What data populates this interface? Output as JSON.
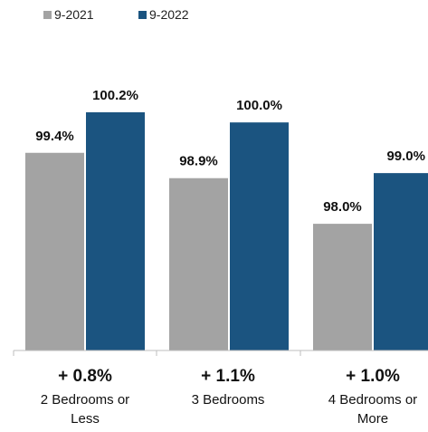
{
  "chart_data": {
    "type": "bar",
    "categories": [
      {
        "lines": [
          "2 Bedrooms or",
          "Less"
        ],
        "change": "+ 0.8%"
      },
      {
        "lines": [
          "3 Bedrooms"
        ],
        "change": "+ 1.1%"
      },
      {
        "lines": [
          "4 Bedrooms or",
          "More"
        ],
        "change": "+ 1.0%"
      }
    ],
    "series": [
      {
        "name": "9-2021",
        "color": "#A3A3A3",
        "values": [
          99.4,
          98.9,
          98.0
        ],
        "labels": [
          "99.4%",
          "98.9%",
          "98.0%"
        ]
      },
      {
        "name": "9-2022",
        "color": "#1B5480",
        "values": [
          100.2,
          100.0,
          99.0
        ],
        "labels": [
          "100.2%",
          "100.0%",
          "99.0%"
        ]
      }
    ],
    "ylim": [
      95.5,
      100.7
    ],
    "grid": false,
    "legend": "top-left"
  }
}
